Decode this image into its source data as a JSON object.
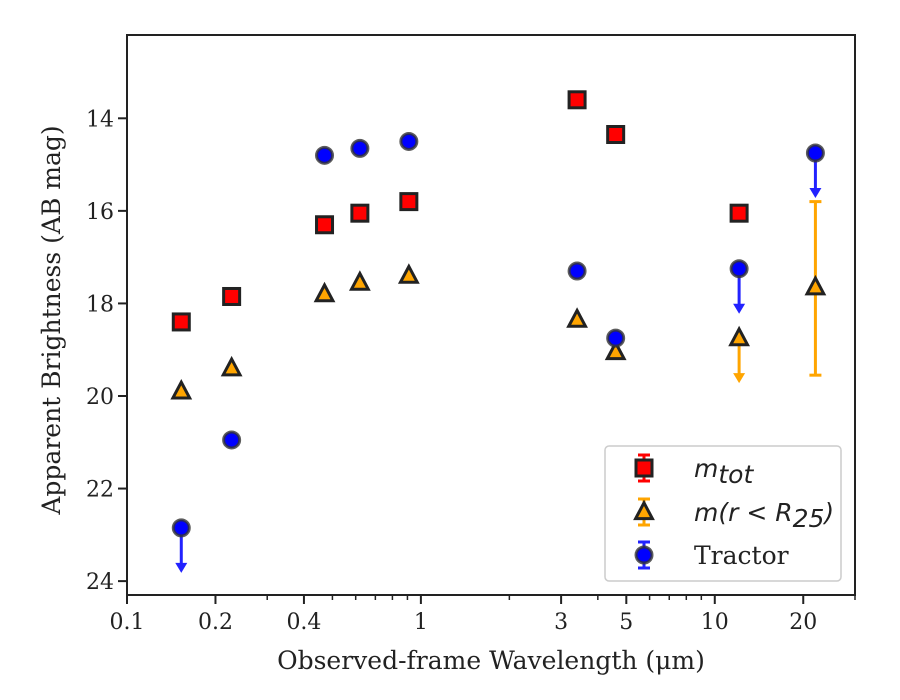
{
  "chart_data": {
    "type": "scatter",
    "xlabel": "Observed-frame Wavelength (μm)",
    "ylabel": "Apparent Brightness (AB mag)",
    "xscale": "log",
    "xlim": [
      0.1,
      30
    ],
    "ylim": [
      24.3,
      12.2
    ],
    "y_inverted": true,
    "xticks": [
      {
        "value": 0.1,
        "label": "0.1"
      },
      {
        "value": 0.2,
        "label": "0.2"
      },
      {
        "value": 0.4,
        "label": "0.4"
      },
      {
        "value": 1,
        "label": "1"
      },
      {
        "value": 3,
        "label": "3"
      },
      {
        "value": 5,
        "label": "5"
      },
      {
        "value": 10,
        "label": "10"
      },
      {
        "value": 20,
        "label": "20"
      }
    ],
    "yticks": [
      {
        "value": 14,
        "label": "14"
      },
      {
        "value": 16,
        "label": "16"
      },
      {
        "value": 18,
        "label": "18"
      },
      {
        "value": 20,
        "label": "20"
      },
      {
        "value": 22,
        "label": "22"
      },
      {
        "value": 24,
        "label": "24"
      }
    ],
    "legend_position": "lower-right",
    "series": [
      {
        "name_main": "m",
        "name_sub": "tot",
        "marker": "square",
        "color": "#ff0000",
        "edge": "#222222",
        "errcolor": "#ff0000",
        "points": [
          {
            "x": 0.153,
            "y": 18.4
          },
          {
            "x": 0.227,
            "y": 17.85
          },
          {
            "x": 0.47,
            "y": 16.3
          },
          {
            "x": 0.62,
            "y": 16.05
          },
          {
            "x": 0.91,
            "y": 15.8
          },
          {
            "x": 3.4,
            "y": 13.6
          },
          {
            "x": 4.6,
            "y": 14.35
          },
          {
            "x": 12.1,
            "y": 16.05
          }
        ]
      },
      {
        "name_main": "m(r < R",
        "name_sub": "25",
        "name_tail": ")",
        "marker": "triangle",
        "color": "#ffa500",
        "edge": "#222222",
        "errcolor": "#ffa500",
        "points": [
          {
            "x": 0.153,
            "y": 19.9
          },
          {
            "x": 0.227,
            "y": 19.4
          },
          {
            "x": 0.47,
            "y": 17.8
          },
          {
            "x": 0.62,
            "y": 17.55
          },
          {
            "x": 0.91,
            "y": 17.4
          },
          {
            "x": 3.4,
            "y": 18.35
          },
          {
            "x": 4.6,
            "y": 19.05
          },
          {
            "x": 12.1,
            "y": 18.75,
            "upper_limit": true
          },
          {
            "x": 22,
            "y": 17.65,
            "err_low": 15.8,
            "err_high": 19.55
          }
        ]
      },
      {
        "name_main": "Tractor",
        "marker": "circle",
        "color": "#0000ff",
        "edge": "#333333",
        "errcolor": "#2222ff",
        "points": [
          {
            "x": 0.153,
            "y": 22.85,
            "upper_limit": true
          },
          {
            "x": 0.227,
            "y": 20.95
          },
          {
            "x": 0.47,
            "y": 14.8
          },
          {
            "x": 0.62,
            "y": 14.65
          },
          {
            "x": 0.91,
            "y": 14.5
          },
          {
            "x": 3.4,
            "y": 17.3
          },
          {
            "x": 4.6,
            "y": 18.75
          },
          {
            "x": 12.1,
            "y": 17.25,
            "upper_limit": true
          },
          {
            "x": 22,
            "y": 14.75,
            "upper_limit": true
          }
        ]
      }
    ]
  }
}
